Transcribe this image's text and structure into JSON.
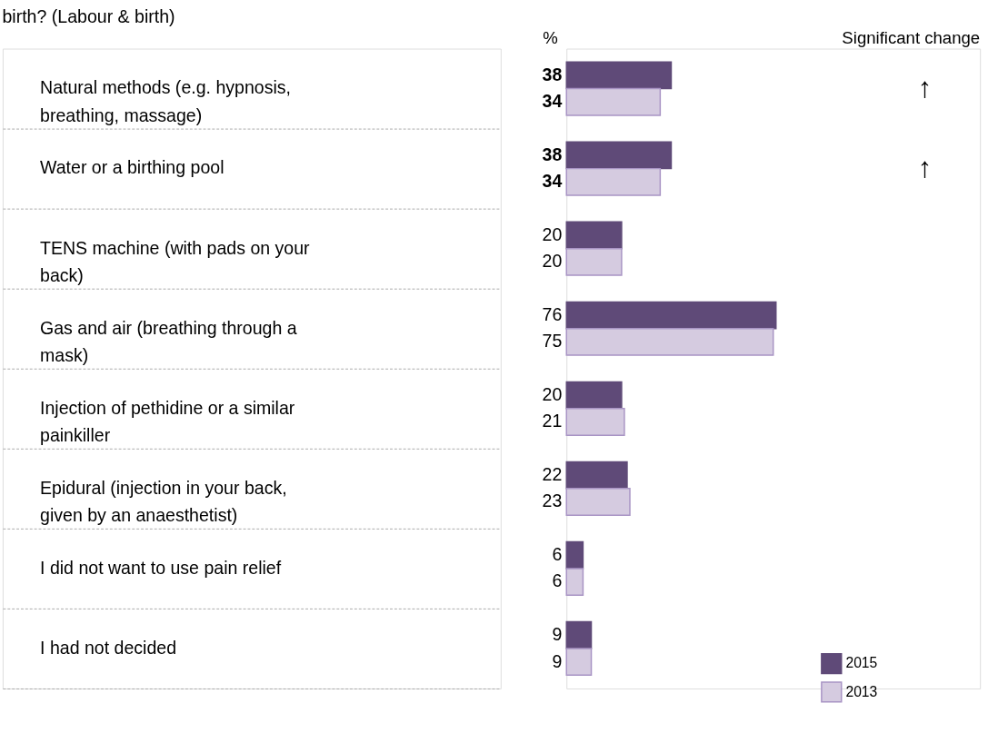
{
  "chart_data": {
    "type": "bar",
    "orientation": "horizontal",
    "title": "birth? (Labour & birth)",
    "categories": [
      "Natural methods (e.g. hypnosis, breathing, massage)",
      "Water or a birthing pool",
      "TENS machine (with pads on your back)",
      "Gas and air (breathing through a mask)",
      "Injection of pethidine or a similar painkiller",
      "Epidural (injection in your back, given by an anaesthetist)",
      "I did not want to use pain relief",
      "I had not decided"
    ],
    "series": [
      {
        "name": "2015",
        "color": "#5f4a78",
        "values": [
          38,
          38,
          20,
          76,
          20,
          22,
          6,
          9
        ]
      },
      {
        "name": "2013",
        "color": "#d5cbe0",
        "values": [
          34,
          34,
          20,
          75,
          21,
          23,
          6,
          9
        ]
      }
    ],
    "data_labels": true,
    "grid": "y",
    "legend": "bottom right",
    "annotations": [
      "%",
      "Significant change",
      "↑",
      "↑"
    ]
  }
}
